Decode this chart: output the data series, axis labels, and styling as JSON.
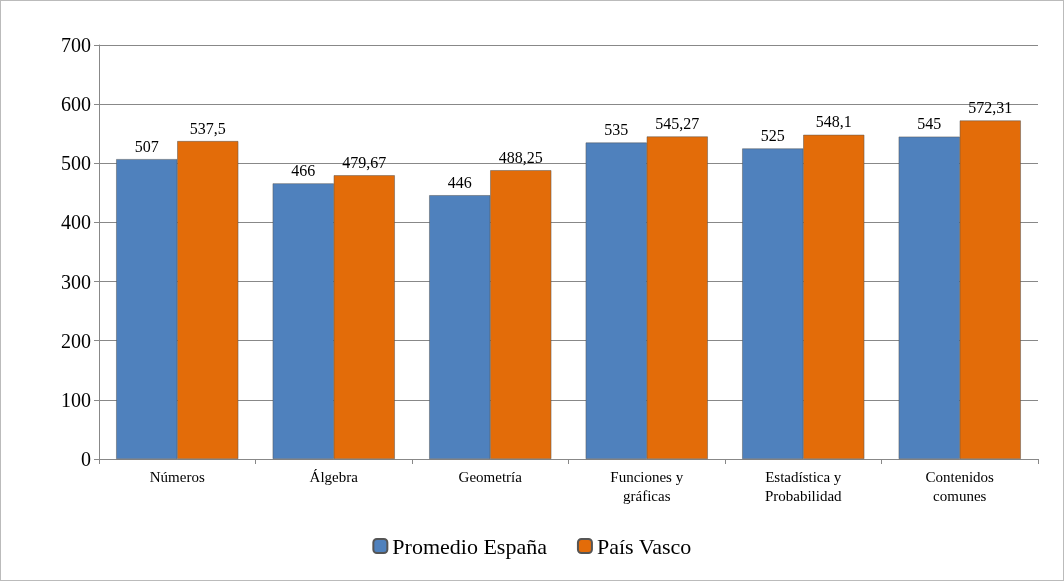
{
  "chart_data": {
    "type": "bar",
    "categories": [
      "Números",
      "Álgebra",
      "Geometría",
      "Funciones y gráficas",
      "Estadística y Probabilidad",
      "Contenidos comunes"
    ],
    "series": [
      {
        "name": "Promedio España",
        "color": "#4f81bd",
        "values": [
          507,
          466,
          446,
          535,
          525,
          545
        ],
        "value_labels": [
          "507",
          "466",
          "446",
          "535",
          "525",
          "545"
        ]
      },
      {
        "name": "País Vasco",
        "color": "#e36c09",
        "values": [
          537.5,
          479.67,
          488.25,
          545.27,
          548.1,
          572.31
        ],
        "value_labels": [
          "537,5",
          "479,67",
          "488,25",
          "545,27",
          "548,1",
          "572,31"
        ]
      }
    ],
    "ylim": [
      0,
      700
    ],
    "yticks": [
      0,
      100,
      200,
      300,
      400,
      500,
      600,
      700
    ],
    "grid": "y",
    "legend": "bottom"
  }
}
